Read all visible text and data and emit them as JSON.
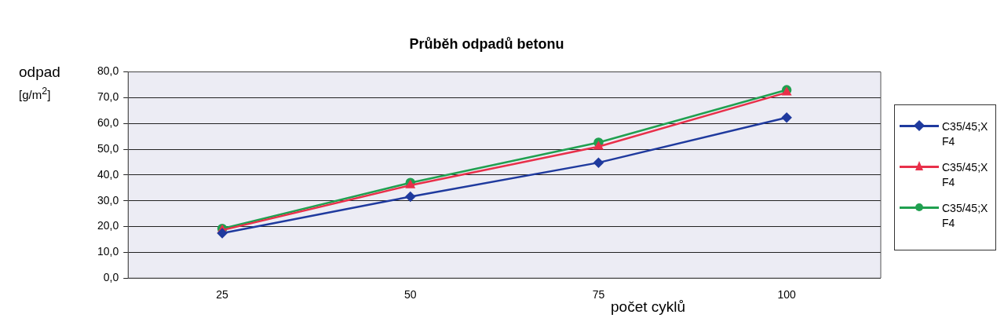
{
  "chart_data": {
    "type": "line",
    "title": "Průběh odpadů betonu",
    "xlabel": "počet cyklů",
    "ylabel": "odpad [g/m$^{2}$]",
    "categories": [
      "25",
      "50",
      "75",
      "100"
    ],
    "series": [
      {
        "name": "C35/45;X F4",
        "color": "#1f3a9e",
        "marker": "diamond",
        "values": [
          17.4,
          31.6,
          44.8,
          62.3
        ]
      },
      {
        "name": "C35/45;X F4",
        "color": "#e8304a",
        "marker": "triangle",
        "values": [
          18.6,
          36.0,
          51.0,
          72.0
        ]
      },
      {
        "name": "C35/45;X F4",
        "color": "#20a050",
        "marker": "circle",
        "values": [
          19.2,
          37.0,
          52.6,
          73.0
        ]
      }
    ],
    "ylim": [
      0,
      80
    ],
    "yticks": [
      {
        "value": 0,
        "label": "0,0"
      },
      {
        "value": 10,
        "label": "10,0"
      },
      {
        "value": 20,
        "label": "20,0"
      },
      {
        "value": 30,
        "label": "30,0"
      },
      {
        "value": 40,
        "label": "40,0"
      },
      {
        "value": 50,
        "label": "50,0"
      },
      {
        "value": 60,
        "label": "60,0"
      },
      {
        "value": 70,
        "label": "70,0"
      },
      {
        "value": 80,
        "label": "80,0"
      }
    ],
    "grid": "y",
    "legend": "right",
    "line_style": "solid"
  }
}
